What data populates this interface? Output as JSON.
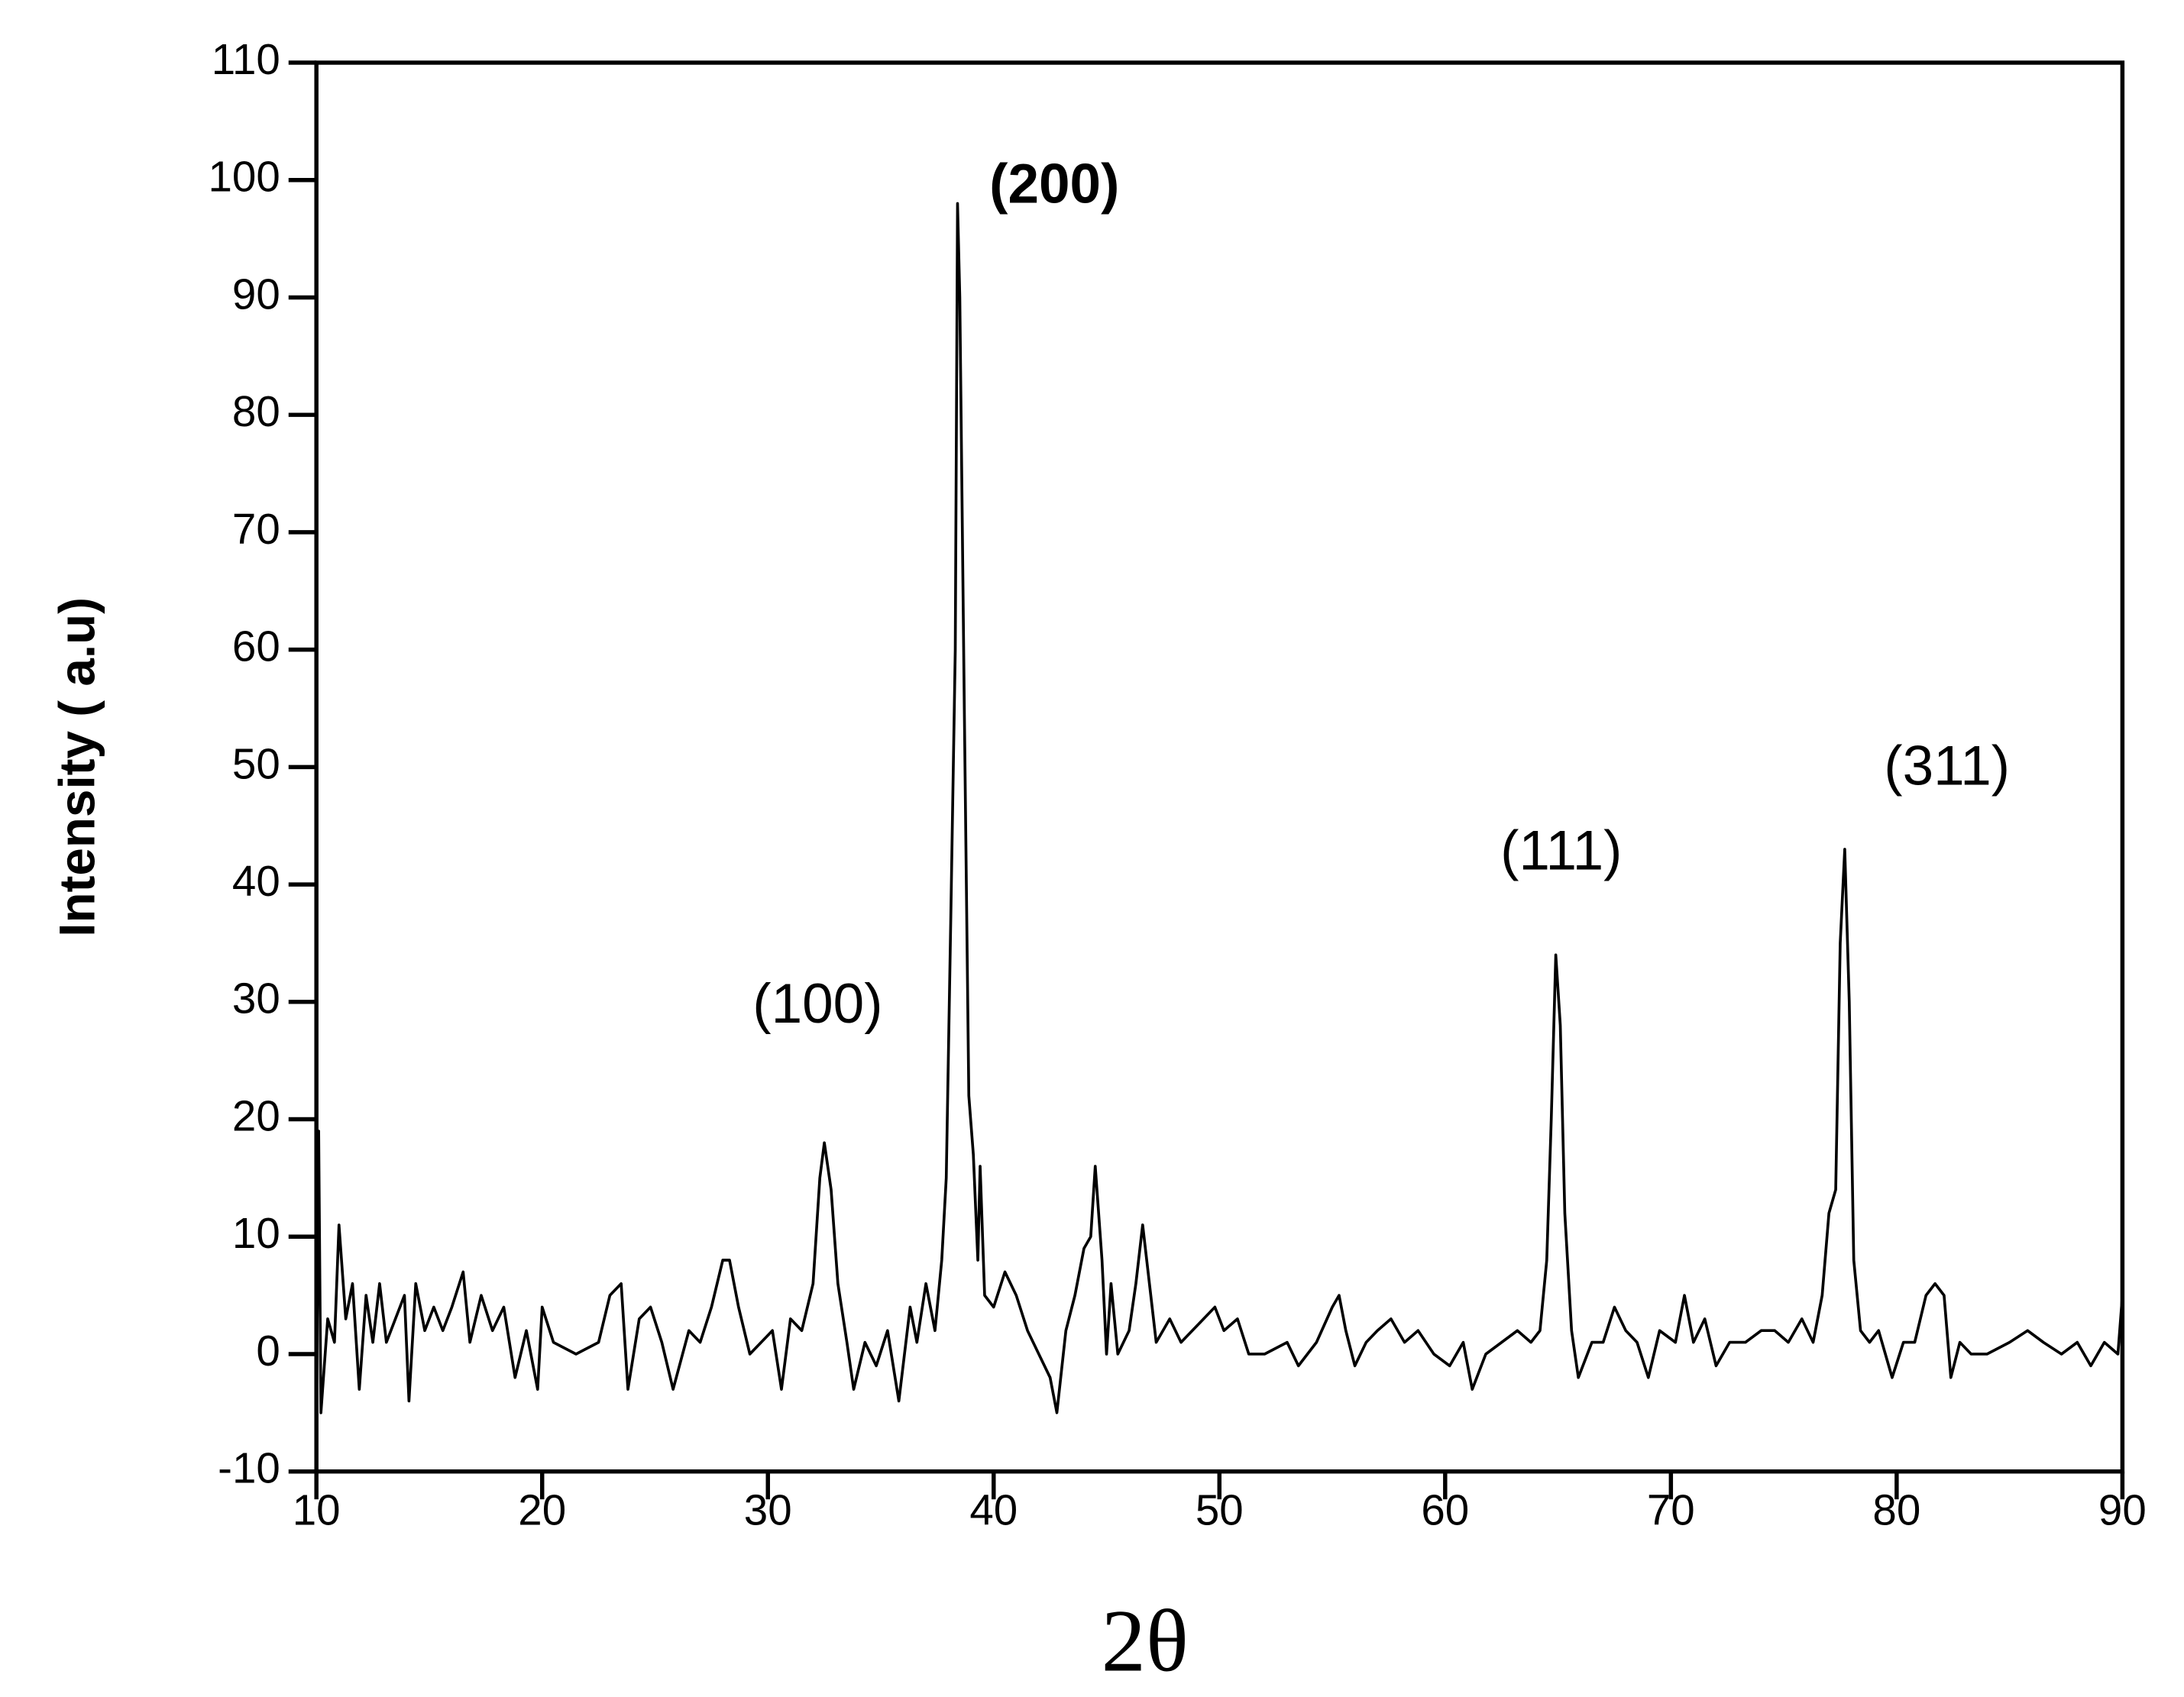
{
  "chart_data": {
    "type": "line",
    "x_label": "2θ",
    "y_label": "Intensity ( a.u)",
    "xlim": [
      10,
      90
    ],
    "xticks": [
      10,
      20,
      30,
      40,
      50,
      60,
      70,
      80,
      90
    ],
    "ylim": [
      -10,
      110
    ],
    "yticks": [
      -10,
      0,
      10,
      20,
      30,
      40,
      50,
      60,
      70,
      80,
      90,
      100,
      110
    ],
    "annotations": [
      "(100)",
      "(200)",
      "(111)",
      "(311)"
    ],
    "series": [
      {
        "color": "#000000",
        "x": [
          10,
          10.1,
          10.2,
          10.5,
          10.8,
          11.0,
          11.3,
          11.6,
          11.9,
          12.2,
          12.5,
          12.8,
          13.1,
          13.5,
          13.9,
          14.1,
          14.4,
          14.8,
          15.2,
          15.6,
          16.0,
          16.5,
          16.8,
          17.3,
          17.8,
          18.3,
          18.8,
          19.3,
          19.8,
          20.0,
          20.5,
          21.5,
          22.5,
          23.0,
          23.5,
          23.8,
          24.3,
          24.8,
          25.3,
          25.8,
          26.5,
          27.0,
          27.5,
          28.0,
          28.3,
          28.7,
          29.2,
          29.7,
          30.2,
          30.6,
          31.0,
          31.5,
          32.0,
          32.3,
          32.5,
          32.8,
          33.1,
          33.5,
          33.8,
          34.3,
          34.8,
          35.3,
          35.8,
          36.3,
          36.6,
          37.0,
          37.4,
          37.7,
          37.9,
          38.1,
          38.3,
          38.4,
          38.5,
          38.7,
          38.9,
          39.1,
          39.3,
          39.4,
          39.6,
          40.0,
          40.5,
          41.0,
          41.5,
          42.0,
          42.5,
          42.8,
          43.2,
          43.6,
          44.0,
          44.3,
          44.5,
          44.8,
          45.0,
          45.2,
          45.5,
          46.0,
          46.3,
          46.6,
          46.9,
          47.2,
          47.8,
          48.3,
          48.8,
          49.3,
          49.8,
          50.2,
          50.8,
          51.3,
          52.0,
          53.0,
          53.5,
          54.3,
          55.0,
          55.3,
          55.6,
          56.0,
          56.5,
          57.0,
          57.6,
          58.2,
          58.8,
          59.5,
          60.2,
          60.8,
          61.2,
          61.8,
          62.5,
          63.2,
          63.8,
          64.2,
          64.5,
          64.7,
          64.9,
          65.1,
          65.3,
          65.6,
          65.9,
          66.5,
          67.0,
          67.5,
          68.0,
          68.5,
          69.0,
          69.5,
          70.2,
          70.6,
          71.0,
          71.5,
          72.0,
          72.6,
          73.3,
          74.0,
          74.6,
          75.2,
          75.8,
          76.3,
          76.7,
          77.0,
          77.3,
          77.5,
          77.7,
          77.9,
          78.1,
          78.4,
          78.8,
          79.2,
          79.8,
          80.3,
          80.8,
          81.3,
          81.7,
          82.1,
          82.4,
          82.8,
          83.3,
          84.0,
          85.0,
          85.8,
          86.5,
          87.3,
          88.0,
          88.6,
          89.2,
          89.8,
          90.0
        ],
        "values": [
          -5,
          19,
          -5,
          3,
          1,
          11,
          3,
          6,
          -3,
          5,
          1,
          6,
          1,
          3,
          5,
          -4,
          6,
          2,
          4,
          2,
          4,
          7,
          1,
          5,
          2,
          4,
          -2,
          2,
          -3,
          4,
          1,
          0,
          1,
          5,
          6,
          -3,
          3,
          4,
          1,
          -3,
          2,
          1,
          4,
          8,
          8,
          4,
          0,
          1,
          2,
          -3,
          3,
          2,
          6,
          15,
          18,
          14,
          6,
          1,
          -3,
          1,
          -1,
          2,
          -4,
          4,
          1,
          6,
          2,
          8,
          15,
          37,
          60,
          98,
          90,
          55,
          22,
          17,
          8,
          16,
          5,
          4,
          7,
          5,
          2,
          0,
          -2,
          -5,
          2,
          5,
          9,
          10,
          16,
          8,
          0,
          6,
          0,
          2,
          6,
          11,
          6,
          1,
          3,
          1,
          2,
          3,
          4,
          2,
          3,
          0,
          0,
          1,
          -1,
          1,
          4,
          5,
          2,
          -1,
          1,
          2,
          3,
          1,
          2,
          0,
          -1,
          1,
          -3,
          0,
          1,
          2,
          1,
          2,
          8,
          20,
          34,
          28,
          12,
          2,
          -2,
          1,
          1,
          4,
          2,
          1,
          -2,
          2,
          1,
          5,
          1,
          3,
          -1,
          1,
          1,
          2,
          2,
          1,
          3,
          1,
          5,
          12,
          14,
          35,
          43,
          30,
          8,
          2,
          1,
          2,
          -2,
          1,
          1,
          5,
          6,
          5,
          -2,
          1,
          0,
          0,
          1,
          2,
          1,
          0,
          1,
          -1,
          1,
          0,
          5
        ]
      }
    ]
  }
}
